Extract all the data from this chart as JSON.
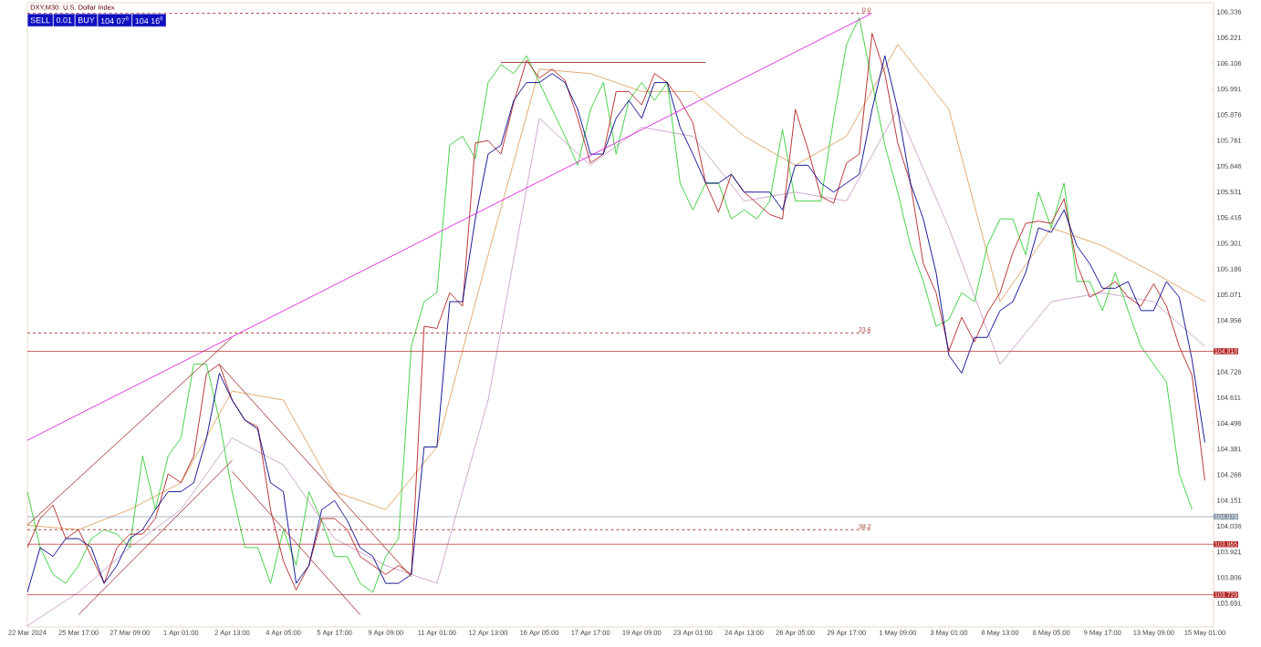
{
  "chart_data": {
    "type": "line",
    "title": "DXY,M30: U.S. Dollar Index",
    "categories": [
      "22 Mar 2024",
      null,
      null,
      null,
      "25 Mar 17:00",
      null,
      null,
      null,
      "27 Mar 09:00",
      null,
      null,
      null,
      "1 Apr 01:00",
      null,
      null,
      null,
      "2 Apr 13:00",
      null,
      null,
      null,
      "4 Apr 05:00",
      null,
      null,
      null,
      "5 Apr 17:00",
      null,
      null,
      null,
      "9 Apr 09:00",
      null,
      null,
      null,
      "11 Apr 01:00",
      null,
      null,
      null,
      "12 Apr 13:00",
      null,
      null,
      null,
      "16 Apr 05:00",
      null,
      null,
      null,
      "17 Apr 17:00",
      null,
      null,
      null,
      "19 Apr 09:00",
      null,
      null,
      null,
      "23 Apr 01:00",
      null,
      null,
      null,
      "24 Apr 13:00",
      null,
      null,
      null,
      "26 Apr 05:00",
      null,
      null,
      null,
      "29 Apr 17:00",
      null,
      null,
      null,
      "1 May 09:00",
      null,
      null,
      null,
      "3 May 01:00",
      null,
      null,
      null,
      "6 May 13:00",
      null,
      null,
      null,
      "8 May 05:00",
      null,
      null,
      null,
      "9 May 17:00",
      null,
      null,
      null,
      "13 May 09:00",
      null,
      null,
      null,
      "15 May 01:00"
    ],
    "series": [
      {
        "type": "line",
        "color": "#e0a060",
        "values": [
          104.04,
          null,
          null,
          null,
          104.02,
          null,
          null,
          null,
          104.11,
          null,
          null,
          null,
          104.23,
          null,
          null,
          null,
          104.64,
          null,
          null,
          null,
          104.6,
          null,
          null,
          null,
          104.19,
          null,
          null,
          null,
          104.11,
          null,
          null,
          null,
          104.39,
          null,
          null,
          null,
          105.25,
          null,
          null,
          null,
          106.08,
          null,
          null,
          null,
          106.06,
          null,
          null,
          null,
          105.98,
          null,
          null,
          null,
          105.98,
          null,
          null,
          null,
          105.78,
          null,
          null,
          null,
          105.65,
          null,
          null,
          null,
          105.78,
          null,
          null,
          null,
          106.19,
          null,
          null,
          null,
          105.9,
          null,
          null,
          null,
          105.04,
          null,
          null,
          null,
          105.37,
          null,
          null,
          null,
          105.29,
          null,
          null,
          null,
          105.17,
          null,
          null,
          null,
          105.04
        ]
      },
      {
        "type": "line",
        "color": "#c8a0c8",
        "values": [
          103.59,
          null,
          null,
          null,
          103.74,
          null,
          null,
          null,
          103.94,
          null,
          null,
          null,
          104.11,
          null,
          null,
          null,
          104.43,
          null,
          null,
          null,
          104.31,
          null,
          null,
          null,
          103.98,
          null,
          null,
          null,
          103.86,
          null,
          null,
          null,
          103.78,
          null,
          null,
          null,
          104.6,
          null,
          null,
          null,
          105.86,
          null,
          null,
          null,
          105.65,
          null,
          null,
          null,
          105.82,
          null,
          null,
          null,
          105.78,
          null,
          null,
          null,
          105.49,
          null,
          null,
          null,
          105.53,
          null,
          null,
          null,
          105.49,
          null,
          null,
          null,
          105.9,
          null,
          null,
          null,
          105.37,
          null,
          null,
          null,
          104.76,
          null,
          null,
          null,
          105.04,
          null,
          null,
          null,
          105.08,
          null,
          null,
          null,
          105.04,
          null,
          null,
          null,
          104.84
        ]
      },
      {
        "type": "line",
        "color": "#32cd32",
        "values": [
          104.19,
          103.94,
          103.82,
          103.78,
          103.86,
          103.98,
          104.02,
          104.0,
          103.94,
          104.35,
          104.11,
          104.35,
          104.43,
          104.76,
          104.76,
          104.51,
          104.19,
          103.94,
          103.94,
          103.78,
          104.02,
          103.86,
          104.19,
          104.06,
          103.9,
          103.9,
          103.78,
          103.74,
          103.9,
          103.98,
          104.84,
          105.04,
          105.08,
          105.74,
          105.78,
          105.68,
          106.02,
          106.1,
          106.06,
          106.14,
          106.02,
          105.9,
          105.78,
          105.65,
          105.9,
          106.02,
          105.7,
          105.94,
          106.02,
          105.94,
          106.02,
          105.57,
          105.45,
          105.57,
          105.57,
          105.41,
          105.45,
          105.41,
          105.49,
          105.81,
          105.49,
          105.49,
          105.49,
          105.86,
          106.19,
          106.31,
          106.02,
          105.74,
          105.53,
          105.29,
          105.13,
          104.93,
          104.96,
          105.08,
          105.04,
          105.29,
          105.41,
          105.41,
          105.25,
          105.53,
          105.37,
          105.57,
          105.13,
          105.13,
          105.0,
          105.17,
          105.0,
          104.84,
          104.76,
          104.68,
          104.27,
          104.11,
          null
        ]
      },
      {
        "color": "#b22222",
        "values": [
          103.94,
          104.07,
          104.13,
          103.98,
          104.02,
          103.9,
          103.78,
          103.94,
          104.0,
          104.0,
          104.07,
          104.27,
          104.23,
          104.35,
          104.72,
          104.76,
          104.6,
          104.51,
          104.48,
          104.11,
          103.88,
          103.75,
          103.86,
          104.07,
          104.07,
          104.02,
          103.9,
          103.86,
          103.82,
          103.86,
          103.82,
          104.93,
          104.92,
          105.08,
          105.02,
          105.75,
          105.76,
          105.7,
          105.93,
          106.12,
          106.04,
          106.08,
          106.03,
          105.86,
          105.66,
          105.7,
          105.98,
          105.98,
          105.92,
          106.06,
          106.02,
          105.94,
          105.84,
          105.57,
          105.44,
          105.61,
          105.53,
          105.48,
          105.43,
          105.41,
          105.9,
          105.72,
          105.51,
          105.48,
          105.66,
          105.7,
          106.24,
          106.06,
          105.75,
          105.57,
          105.21,
          105.08,
          104.82,
          104.97,
          104.86,
          104.99,
          105.08,
          105.26,
          105.39,
          105.4,
          105.39,
          105.5,
          105.21,
          105.06,
          105.09,
          105.13,
          105.06,
          105.02,
          105.12,
          105.02,
          104.84,
          104.71,
          104.24
        ]
      },
      {
        "type": "line",
        "color": "#00008b",
        "values": [
          103.74,
          103.94,
          103.9,
          103.98,
          103.98,
          103.94,
          103.78,
          103.86,
          103.98,
          104.02,
          104.11,
          104.19,
          104.19,
          104.23,
          104.43,
          104.72,
          104.6,
          104.51,
          104.47,
          104.23,
          104.19,
          103.78,
          103.86,
          104.11,
          104.15,
          104.06,
          103.94,
          103.9,
          103.78,
          103.78,
          103.82,
          104.39,
          104.39,
          105.04,
          105.04,
          105.41,
          105.7,
          105.74,
          105.94,
          106.02,
          106.02,
          106.06,
          106.02,
          105.9,
          105.7,
          105.7,
          105.86,
          105.94,
          105.86,
          106.02,
          106.02,
          105.82,
          105.7,
          105.57,
          105.57,
          105.61,
          105.53,
          105.53,
          105.53,
          105.45,
          105.65,
          105.65,
          105.57,
          105.53,
          105.57,
          105.61,
          105.9,
          106.14,
          105.9,
          105.57,
          105.41,
          105.17,
          104.8,
          104.72,
          104.88,
          104.88,
          105.0,
          105.04,
          105.17,
          105.37,
          105.35,
          105.45,
          105.29,
          105.21,
          105.1,
          105.1,
          105.13,
          105.0,
          105.0,
          105.13,
          105.06,
          104.78,
          104.41
        ]
      },
      {
        "type": "line",
        "color": "#e020e0",
        "values": [
          104.42,
          null,
          null,
          null,
          null,
          null,
          null,
          null,
          null,
          null,
          null,
          null,
          null,
          null,
          null,
          null,
          null,
          null,
          null,
          null,
          null,
          null,
          null,
          null,
          null,
          null,
          null,
          null,
          null,
          null,
          null,
          null,
          null,
          null,
          null,
          null,
          null,
          null,
          null,
          null,
          null,
          null,
          null,
          null,
          null,
          null,
          null,
          null,
          null,
          null,
          null,
          null,
          null,
          null,
          null,
          null,
          null,
          null,
          null,
          null,
          null,
          null,
          null,
          null,
          null,
          null,
          106.33,
          null,
          null,
          null,
          null,
          null,
          null,
          null,
          null,
          null,
          null,
          null,
          null,
          null,
          null,
          null,
          null,
          null,
          null,
          null,
          null,
          null,
          null,
          null,
          null,
          null,
          null
        ]
      },
      {
        "type": "line",
        "color": "#a0322d",
        "values": [
          104.04,
          null,
          null,
          null,
          null,
          null,
          null,
          null,
          null,
          null,
          null,
          null,
          null,
          null,
          null,
          null,
          104.88,
          null,
          null,
          null,
          null,
          null,
          null,
          null,
          null,
          null,
          null,
          null,
          null,
          null,
          null,
          null,
          null,
          null,
          null,
          null,
          null,
          null,
          null,
          null,
          null,
          null,
          null,
          null,
          null,
          null,
          null,
          null,
          null,
          null,
          null,
          null,
          null,
          null,
          null,
          null,
          null,
          null,
          null,
          null,
          null,
          null,
          null,
          null,
          null,
          null,
          null,
          null,
          null,
          null,
          null,
          null,
          null,
          null,
          null,
          null,
          null,
          null,
          null,
          null,
          null,
          null,
          null,
          null,
          null,
          null,
          null,
          null,
          null,
          null,
          null,
          null,
          null
        ]
      },
      {
        "type": "line",
        "color": "#a0322d",
        "values": [
          null,
          null,
          null,
          null,
          103.64,
          null,
          null,
          null,
          null,
          null,
          null,
          null,
          null,
          null,
          null,
          null,
          104.33,
          null,
          null,
          null,
          null,
          null,
          null,
          null,
          null,
          null,
          null,
          null,
          null,
          null,
          null,
          null,
          null,
          null,
          null,
          null,
          null,
          null,
          null,
          null,
          null,
          null,
          null,
          null,
          null,
          null,
          null,
          null,
          null,
          null,
          null,
          null,
          null,
          null,
          null,
          null,
          null,
          null,
          null,
          null,
          null,
          null,
          null,
          null,
          null,
          null,
          null,
          null,
          null,
          null,
          null,
          null,
          null,
          null,
          null,
          null,
          null,
          null,
          null,
          null,
          null,
          null,
          null,
          null,
          null,
          null,
          null,
          null,
          null,
          null,
          null,
          null,
          null
        ]
      },
      {
        "type": "line",
        "color": "#a0322d",
        "values": [
          null,
          null,
          null,
          null,
          null,
          null,
          null,
          null,
          null,
          null,
          null,
          null,
          null,
          null,
          null,
          104.76,
          null,
          null,
          null,
          null,
          null,
          null,
          null,
          null,
          null,
          null,
          null,
          null,
          null,
          null,
          103.81,
          null,
          null,
          null,
          null,
          null,
          null,
          null,
          null,
          null,
          null,
          null,
          null,
          null,
          null,
          null,
          null,
          null,
          null,
          null,
          null,
          null,
          null,
          null,
          null,
          null,
          null,
          null,
          null,
          null,
          null,
          null,
          null,
          null,
          null,
          null,
          null,
          null,
          null,
          null,
          null,
          null,
          null,
          null,
          null,
          null,
          null,
          null,
          null,
          null,
          null,
          null,
          null,
          null,
          null,
          null,
          null,
          null,
          null,
          null,
          null,
          null,
          null
        ]
      },
      {
        "type": "line",
        "color": "#a0322d",
        "values": [
          null,
          null,
          null,
          null,
          null,
          null,
          null,
          null,
          null,
          null,
          null,
          null,
          null,
          null,
          null,
          null,
          104.28,
          null,
          null,
          null,
          null,
          null,
          null,
          null,
          null,
          null,
          103.64,
          null,
          null,
          null,
          null,
          null,
          null,
          null,
          null,
          null,
          null,
          null,
          null,
          null,
          null,
          null,
          null,
          null,
          null,
          null,
          null,
          null,
          null,
          null,
          null,
          null,
          null,
          null,
          null,
          null,
          null,
          null,
          null,
          null,
          null,
          null,
          null,
          null,
          null,
          null,
          null,
          null,
          null,
          null,
          null,
          null,
          null,
          null,
          null,
          null,
          null,
          null,
          null,
          null,
          null,
          null,
          null,
          null,
          null,
          null,
          null,
          null,
          null,
          null,
          null,
          null,
          null
        ]
      },
      {
        "type": "line",
        "color": "#a0322d",
        "values": [
          null,
          null,
          null,
          null,
          null,
          null,
          null,
          null,
          null,
          null,
          null,
          null,
          null,
          null,
          null,
          null,
          null,
          null,
          null,
          null,
          null,
          null,
          null,
          null,
          null,
          null,
          null,
          null,
          null,
          null,
          null,
          null,
          null,
          null,
          null,
          null,
          null,
          106.11,
          null,
          null,
          null,
          null,
          null,
          null,
          null,
          null,
          null,
          null,
          null,
          null,
          null,
          null,
          null,
          106.11,
          null,
          null,
          null,
          null,
          null,
          null,
          null,
          null,
          null,
          null,
          null,
          null,
          null,
          null,
          null,
          null,
          null,
          null,
          null,
          null,
          null,
          null,
          null,
          null,
          null,
          null,
          null,
          null,
          null,
          null,
          null,
          null,
          null,
          null,
          null,
          null,
          null,
          null,
          null
        ]
      },
      {
        "type": "line",
        "name": "0.0",
        "color": "#a0322d",
        "line_style": "dashed",
        "values": [
          106.33,
          null,
          null,
          null,
          null,
          null,
          null,
          null,
          null,
          null,
          null,
          null,
          null,
          null,
          null,
          null,
          null,
          null,
          null,
          null,
          null,
          null,
          null,
          null,
          null,
          null,
          null,
          null,
          null,
          null,
          null,
          null,
          null,
          null,
          null,
          null,
          null,
          null,
          null,
          null,
          null,
          null,
          null,
          null,
          null,
          null,
          null,
          null,
          null,
          null,
          null,
          null,
          null,
          null,
          null,
          null,
          null,
          null,
          null,
          null,
          null,
          null,
          null,
          null,
          null,
          null,
          106.33,
          null,
          null,
          null,
          null,
          null,
          null,
          null,
          null,
          null,
          null,
          null,
          null,
          null,
          null,
          null,
          null,
          null,
          null,
          null,
          null,
          null,
          null,
          null,
          null,
          null,
          null
        ]
      },
      {
        "type": "line",
        "name": "23.6",
        "color": "#a0322d",
        "line_style": "dashed",
        "values": [
          104.9,
          null,
          null,
          null,
          null,
          null,
          null,
          null,
          null,
          null,
          null,
          null,
          null,
          null,
          null,
          null,
          null,
          null,
          null,
          null,
          null,
          null,
          null,
          null,
          null,
          null,
          null,
          null,
          null,
          null,
          null,
          null,
          null,
          null,
          null,
          null,
          null,
          null,
          null,
          null,
          null,
          null,
          null,
          null,
          null,
          null,
          null,
          null,
          null,
          null,
          null,
          null,
          null,
          null,
          null,
          null,
          null,
          null,
          null,
          null,
          null,
          null,
          null,
          null,
          null,
          null,
          104.9,
          null,
          null,
          null,
          null,
          null,
          null,
          null,
          null,
          null,
          null,
          null,
          null,
          null,
          null,
          null,
          null,
          null,
          null,
          null,
          null,
          null,
          null,
          null,
          null,
          null,
          null
        ]
      },
      {
        "type": "line",
        "name": "38.2",
        "color": "#a0322d",
        "line_style": "dashed",
        "values": [
          104.02,
          null,
          null,
          null,
          null,
          null,
          null,
          null,
          null,
          null,
          null,
          null,
          null,
          null,
          null,
          null,
          null,
          null,
          null,
          null,
          null,
          null,
          null,
          null,
          null,
          null,
          null,
          null,
          null,
          null,
          null,
          null,
          null,
          null,
          null,
          null,
          null,
          null,
          null,
          null,
          null,
          null,
          null,
          null,
          null,
          null,
          null,
          null,
          null,
          null,
          null,
          null,
          null,
          null,
          null,
          null,
          null,
          null,
          null,
          null,
          null,
          null,
          null,
          null,
          null,
          null,
          104.02,
          null,
          null,
          null,
          null,
          null,
          null,
          null,
          null,
          null,
          null,
          null,
          null,
          null,
          null,
          null,
          null,
          null,
          null,
          null,
          null,
          null,
          null,
          null,
          null,
          null,
          null
        ]
      }
    ],
    "ylim": [
      103.585,
      106.377
    ],
    "yticks": [
      {
        "value": 106.336,
        "label": "106.336"
      },
      {
        "value": 106.221,
        "label": "106.221"
      },
      {
        "value": 106.106,
        "label": "106.106"
      },
      {
        "value": 105.991,
        "label": "105.991"
      },
      {
        "value": 105.876,
        "label": "105.876"
      },
      {
        "value": 105.761,
        "label": "105.761"
      },
      {
        "value": 105.646,
        "label": "105.646"
      },
      {
        "value": 105.531,
        "label": "105.531"
      },
      {
        "value": 105.416,
        "label": "105.416"
      },
      {
        "value": 105.301,
        "label": "105.301"
      },
      {
        "value": 105.186,
        "label": "105.186"
      },
      {
        "value": 105.071,
        "label": "105.071"
      },
      {
        "value": 104.956,
        "label": "104.956"
      },
      {
        "value": 104.841,
        "label": null
      },
      {
        "value": 104.726,
        "label": "104.726"
      },
      {
        "value": 104.611,
        "label": "104.611"
      },
      {
        "value": 104.496,
        "label": "104.496"
      },
      {
        "value": 104.381,
        "label": "104.381"
      },
      {
        "value": 104.266,
        "label": "104.266"
      },
      {
        "value": 104.151,
        "label": "104.151"
      },
      {
        "value": 104.036,
        "label": "104.036"
      },
      {
        "value": 103.921,
        "label": "103.921"
      },
      {
        "value": 103.806,
        "label": "103.806"
      },
      {
        "value": 103.691,
        "label": "103.691"
      }
    ],
    "ref_lines": [
      {
        "axis": "y",
        "value": 104.818,
        "label": "104.818",
        "color": "#b22222"
      },
      {
        "axis": "y",
        "value": 104.078,
        "label": "104.078",
        "color": "#8796a5"
      },
      {
        "axis": "y",
        "value": 103.955,
        "label": "103.955",
        "color": "#b22222"
      },
      {
        "axis": "y",
        "value": 103.729,
        "label": "103.729",
        "color": "#b22222"
      }
    ],
    "annotations": [
      "SELL",
      "0.01",
      "BUY",
      "104 07$^{8}$",
      "104 16$^{8}$"
    ],
    "marker": "none"
  }
}
